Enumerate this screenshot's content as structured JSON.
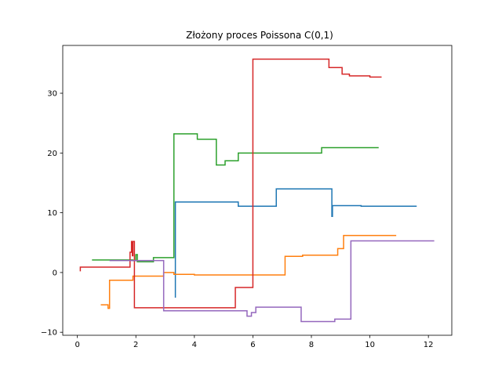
{
  "chart_data": {
    "type": "line",
    "title": "Złożony proces Poissona C(0,1)",
    "xlabel": "",
    "ylabel": "",
    "xlim": [
      -0.5,
      12.8
    ],
    "ylim": [
      -10.5,
      38
    ],
    "xticks": [
      0,
      2,
      4,
      6,
      8,
      10,
      12
    ],
    "yticks": [
      -10,
      0,
      10,
      20,
      30
    ],
    "grid": false,
    "legend": "none",
    "series": [
      {
        "color": "#1f77b4",
        "steps": [
          [
            3.35,
            -4.2
          ],
          [
            3.35,
            11.8
          ],
          [
            5.5,
            11.1
          ],
          [
            6.8,
            14.0
          ],
          [
            8.7,
            9.4
          ],
          [
            8.72,
            11.2
          ],
          [
            9.7,
            11.1
          ],
          [
            11.6,
            11.1
          ]
        ]
      },
      {
        "color": "#ff7f0e",
        "steps": [
          [
            0.8,
            -5.4
          ],
          [
            1.05,
            -6.0
          ],
          [
            1.1,
            -1.3
          ],
          [
            1.9,
            -0.6
          ],
          [
            2.95,
            0.0
          ],
          [
            3.3,
            -0.3
          ],
          [
            3.9,
            -0.3
          ],
          [
            4.0,
            -0.4
          ],
          [
            7.1,
            2.7
          ],
          [
            7.7,
            2.9
          ],
          [
            8.9,
            4.0
          ],
          [
            9.1,
            6.2
          ],
          [
            10.9,
            6.2
          ]
        ]
      },
      {
        "color": "#2ca02c",
        "steps": [
          [
            0.5,
            2.1
          ],
          [
            1.9,
            2.0
          ],
          [
            2.0,
            3.0
          ],
          [
            2.05,
            1.8
          ],
          [
            2.6,
            2.5
          ],
          [
            3.3,
            23.2
          ],
          [
            4.1,
            22.3
          ],
          [
            4.75,
            18.0
          ],
          [
            5.05,
            18.7
          ],
          [
            5.5,
            20.0
          ],
          [
            8.35,
            20.9
          ],
          [
            10.3,
            20.9
          ]
        ]
      },
      {
        "color": "#d62728",
        "steps": [
          [
            0.1,
            0.2
          ],
          [
            0.1,
            0.9
          ],
          [
            1.8,
            3.4
          ],
          [
            1.85,
            5.2
          ],
          [
            1.88,
            2.8
          ],
          [
            1.9,
            5.2
          ],
          [
            1.95,
            -5.9
          ],
          [
            5.4,
            -2.5
          ],
          [
            6.0,
            35.7
          ],
          [
            8.6,
            34.3
          ],
          [
            9.05,
            33.2
          ],
          [
            9.3,
            32.9
          ],
          [
            10.0,
            32.7
          ],
          [
            10.4,
            32.7
          ]
        ]
      },
      {
        "color": "#9467bd",
        "steps": [
          [
            1.1,
            2.0
          ],
          [
            2.95,
            -6.4
          ],
          [
            5.8,
            -7.3
          ],
          [
            5.95,
            -6.7
          ],
          [
            6.1,
            -5.8
          ],
          [
            7.65,
            -8.2
          ],
          [
            8.8,
            -7.8
          ],
          [
            9.35,
            5.3
          ],
          [
            12.2,
            5.3
          ]
        ]
      }
    ]
  }
}
